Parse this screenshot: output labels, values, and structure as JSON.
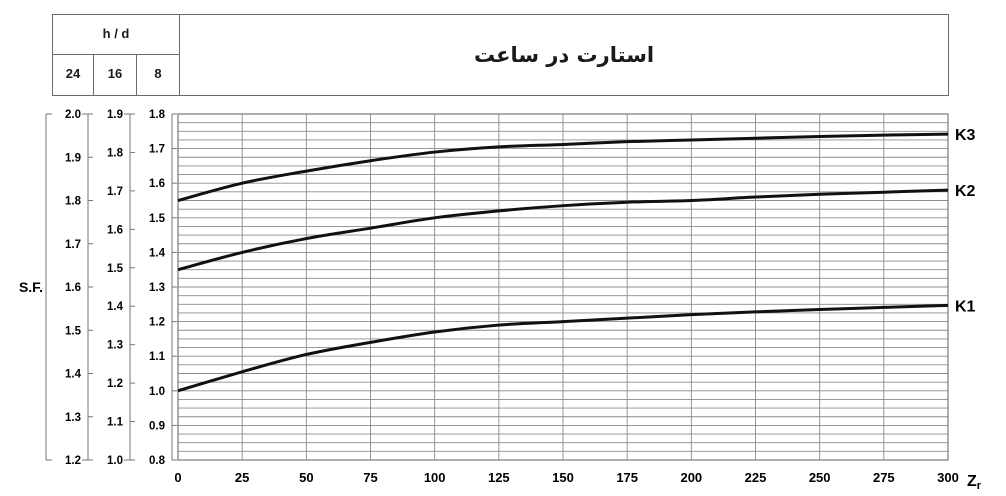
{
  "header": {
    "hd_label": "h / d",
    "columns": [
      "24",
      "16",
      "8"
    ],
    "title": "استارت در ساعت"
  },
  "chart_data": {
    "type": "line",
    "title": "استارت در ساعت",
    "xlabel": "Zr",
    "ylabel": "S.F.",
    "x_ticks": [
      0,
      25,
      50,
      75,
      100,
      125,
      150,
      175,
      200,
      225,
      250,
      275,
      300
    ],
    "xlim": [
      0,
      300
    ],
    "ylim": [
      0.8,
      1.8
    ],
    "grid": true,
    "y_axes": [
      {
        "name": "8",
        "ticks": [
          "0.8",
          "0.9",
          "1.0",
          "1.1",
          "1.2",
          "1.3",
          "1.4",
          "1.5",
          "1.6",
          "1.7",
          "1.8"
        ]
      },
      {
        "name": "16",
        "ticks": [
          "1.0",
          "1.1",
          "1.2",
          "1.3",
          "1.4",
          "1.5",
          "1.6",
          "1.7",
          "1.8",
          "1.9"
        ]
      },
      {
        "name": "24",
        "ticks": [
          "1.2",
          "1.3",
          "1.4",
          "1.5",
          "1.6",
          "1.7",
          "1.8",
          "1.9",
          "2.0"
        ]
      }
    ],
    "series": [
      {
        "name": "K1",
        "x": [
          0,
          25,
          50,
          75,
          100,
          125,
          150,
          175,
          200,
          225,
          250,
          275,
          300
        ],
        "values": [
          1.0,
          1.055,
          1.105,
          1.14,
          1.17,
          1.19,
          1.2,
          1.21,
          1.22,
          1.228,
          1.235,
          1.241,
          1.247
        ]
      },
      {
        "name": "K2",
        "x": [
          0,
          25,
          50,
          75,
          100,
          125,
          150,
          175,
          200,
          225,
          250,
          275,
          300
        ],
        "values": [
          1.35,
          1.4,
          1.44,
          1.47,
          1.5,
          1.52,
          1.535,
          1.545,
          1.55,
          1.56,
          1.568,
          1.574,
          1.58
        ]
      },
      {
        "name": "K3",
        "x": [
          0,
          25,
          50,
          75,
          100,
          125,
          150,
          175,
          200,
          225,
          250,
          275,
          300
        ],
        "values": [
          1.55,
          1.6,
          1.635,
          1.665,
          1.69,
          1.705,
          1.712,
          1.72,
          1.725,
          1.73,
          1.735,
          1.739,
          1.742
        ]
      }
    ]
  }
}
